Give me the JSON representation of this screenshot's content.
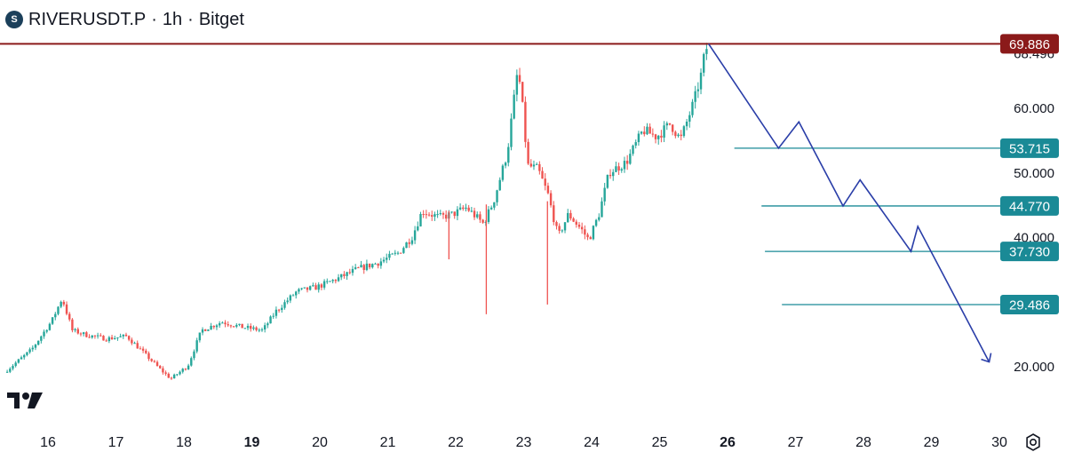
{
  "header": {
    "symbol": "RIVERUSDT.P",
    "interval": "1h",
    "exchange": "Bitget"
  },
  "icons": {
    "logo": "river-coin-icon",
    "watermark": "tradingview-logo-icon",
    "settings": "settings-gear-icon"
  },
  "colors": {
    "up": "#26a69a",
    "down": "#ef5350",
    "resistance": "#8b1a1a",
    "support": "#1a8a96",
    "projection": "#2a3ea8",
    "axis_text": "#131722"
  },
  "chart_data": {
    "type": "candlestick",
    "price_axis": {
      "ticks": [
        "68.496",
        "60.000",
        "50.000",
        "40.000",
        "20.000"
      ],
      "range": [
        16,
        72
      ]
    },
    "time_axis": {
      "ticks": [
        "16",
        "17",
        "18",
        "19",
        "20",
        "21",
        "22",
        "23",
        "24",
        "25",
        "26",
        "27",
        "28",
        "29",
        "30"
      ],
      "bold": [
        "19",
        "26"
      ]
    },
    "resistance": {
      "label": "69.886",
      "value": 69.886
    },
    "support_levels": [
      {
        "label": "53.715",
        "value": 53.715,
        "from_day": 26.1
      },
      {
        "label": "44.770",
        "value": 44.77,
        "from_day": 26.5
      },
      {
        "label": "37.730",
        "value": 37.73,
        "from_day": 26.55
      },
      {
        "label": "29.486",
        "value": 29.486,
        "from_day": 26.8
      }
    ],
    "price_path": [
      [
        15.4,
        19.0
      ],
      [
        15.8,
        22.5
      ],
      [
        16.1,
        27.0
      ],
      [
        16.25,
        30.5
      ],
      [
        16.4,
        25.5
      ],
      [
        16.6,
        24.8
      ],
      [
        16.9,
        24.2
      ],
      [
        17.2,
        24.6
      ],
      [
        17.5,
        21.5
      ],
      [
        17.7,
        19.4
      ],
      [
        17.85,
        18.0
      ],
      [
        18.1,
        20.0
      ],
      [
        18.3,
        25.5
      ],
      [
        18.6,
        26.8
      ],
      [
        18.9,
        26.0
      ],
      [
        19.2,
        25.5
      ],
      [
        19.4,
        28.5
      ],
      [
        19.7,
        31.5
      ],
      [
        20.0,
        32.2
      ],
      [
        20.3,
        33.5
      ],
      [
        20.6,
        35.0
      ],
      [
        20.9,
        36.0
      ],
      [
        21.2,
        37.5
      ],
      [
        21.4,
        40.0
      ],
      [
        21.55,
        44.0
      ],
      [
        21.8,
        43.0
      ],
      [
        22.0,
        43.5
      ],
      [
        22.2,
        44.5
      ],
      [
        22.45,
        42.0
      ],
      [
        22.6,
        45.5
      ],
      [
        22.8,
        53.0
      ],
      [
        22.95,
        65.5
      ],
      [
        23.0,
        63.0
      ],
      [
        23.1,
        51.0
      ],
      [
        23.25,
        50.5
      ],
      [
        23.4,
        46.5
      ],
      [
        23.55,
        40.0
      ],
      [
        23.7,
        43.5
      ],
      [
        23.9,
        41.0
      ],
      [
        24.0,
        39.5
      ],
      [
        24.15,
        43.5
      ],
      [
        24.3,
        50.0
      ],
      [
        24.55,
        51.5
      ],
      [
        24.8,
        56.5
      ],
      [
        25.0,
        55.5
      ],
      [
        25.2,
        57.5
      ],
      [
        25.35,
        55.0
      ],
      [
        25.55,
        61.0
      ],
      [
        25.65,
        65.0
      ],
      [
        25.72,
        69.2
      ]
    ],
    "wick_spikes": [
      {
        "day": 22.45,
        "low": 28.0,
        "high": 45.0
      },
      {
        "day": 23.35,
        "low": 29.5,
        "high": 45.5
      },
      {
        "day": 21.9,
        "low": 36.5,
        "high": 44.0
      }
    ],
    "projection": {
      "points": [
        [
          25.72,
          69.886
        ],
        [
          26.75,
          53.715
        ],
        [
          27.05,
          57.8
        ],
        [
          27.7,
          44.77
        ],
        [
          27.95,
          48.8
        ],
        [
          28.7,
          37.73
        ],
        [
          28.8,
          41.6
        ],
        [
          29.85,
          20.6
        ]
      ]
    }
  }
}
